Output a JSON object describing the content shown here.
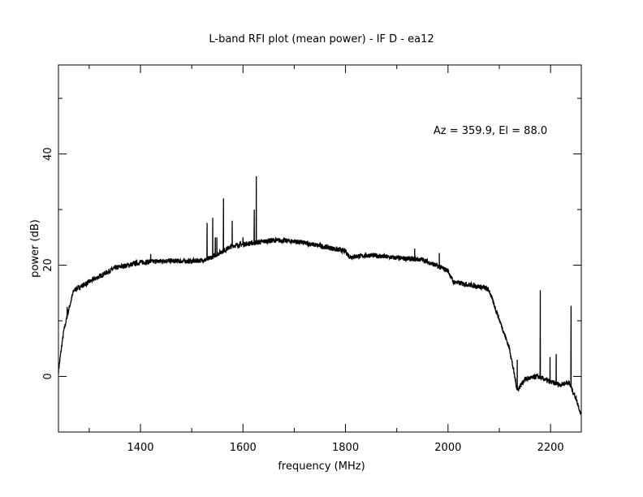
{
  "chart_data": {
    "type": "line",
    "title": "L-band RFI plot (mean power) - IF D - ea12",
    "xlabel": "frequency (MHz)",
    "ylabel": "power (dB)",
    "xlim": [
      1240,
      2260
    ],
    "ylim": [
      -10,
      56
    ],
    "x_ticks": [
      1400,
      1600,
      1800,
      2000,
      2200
    ],
    "x_tick_labels": [
      "1400",
      "1600",
      "1800",
      "2000",
      "2200"
    ],
    "y_ticks": [
      0,
      20,
      40
    ],
    "y_tick_labels": [
      "0",
      "20",
      "40"
    ],
    "x_minor_step": 100,
    "y_minor_step": 10,
    "grid": false,
    "annotation": "Az = 359.9, El = 88.0",
    "series": [
      {
        "name": "mean power",
        "color": "#000000",
        "baseline": [
          [
            1240,
            1
          ],
          [
            1250,
            8
          ],
          [
            1260,
            12
          ],
          [
            1270,
            15.5
          ],
          [
            1300,
            17
          ],
          [
            1350,
            19.5
          ],
          [
            1400,
            20.5
          ],
          [
            1450,
            20.8
          ],
          [
            1500,
            20.7
          ],
          [
            1530,
            21
          ],
          [
            1540,
            21.5
          ],
          [
            1580,
            23.5
          ],
          [
            1620,
            24
          ],
          [
            1660,
            24.5
          ],
          [
            1700,
            24.3
          ],
          [
            1750,
            23.5
          ],
          [
            1800,
            22.5
          ],
          [
            1808,
            21.5
          ],
          [
            1850,
            21.8
          ],
          [
            1900,
            21.3
          ],
          [
            1950,
            21
          ],
          [
            2000,
            19
          ],
          [
            2010,
            17
          ],
          [
            2070,
            16
          ],
          [
            2080,
            15.5
          ],
          [
            2120,
            5
          ],
          [
            2135,
            -2.5
          ],
          [
            2150,
            -0.5
          ],
          [
            2175,
            0
          ],
          [
            2200,
            -1
          ],
          [
            2220,
            -1.5
          ],
          [
            2235,
            -1
          ],
          [
            2250,
            -4
          ],
          [
            2260,
            -7
          ]
        ],
        "spikes": [
          [
            1257,
            12.5
          ],
          [
            1420,
            22
          ],
          [
            1530,
            27.6
          ],
          [
            1541,
            28.5
          ],
          [
            1546,
            25
          ],
          [
            1549,
            25
          ],
          [
            1562,
            32
          ],
          [
            1579,
            28
          ],
          [
            1600,
            25
          ],
          [
            1622,
            30
          ],
          [
            1626,
            36
          ],
          [
            1935,
            23
          ],
          [
            1983,
            22.2
          ],
          [
            2135,
            3
          ],
          [
            2180,
            15.5
          ],
          [
            2199,
            3.5
          ],
          [
            2211,
            4
          ],
          [
            2240,
            12.7
          ]
        ]
      }
    ]
  }
}
